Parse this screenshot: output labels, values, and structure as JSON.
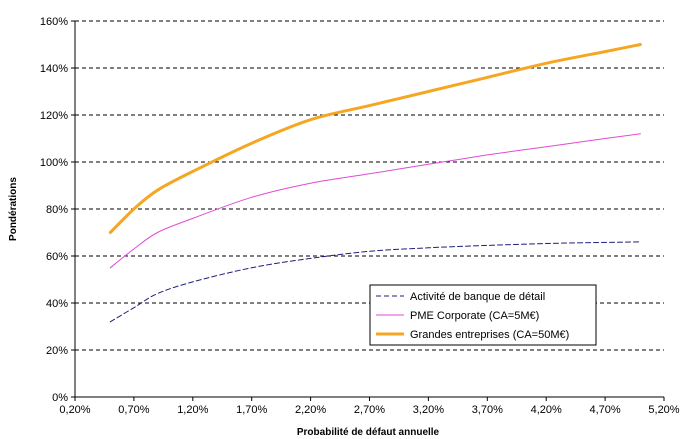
{
  "chart_data": {
    "type": "line",
    "xlabel": "Probabilité de défaut annuelle",
    "ylabel": "Pondérations",
    "xlim": [
      0.2,
      5.2
    ],
    "ylim": [
      0,
      160
    ],
    "x_ticks": [
      0.2,
      0.7,
      1.2,
      1.7,
      2.2,
      2.7,
      3.2,
      3.7,
      4.2,
      4.7,
      5.2
    ],
    "x_tick_labels": [
      "0,20%",
      "0,70%",
      "1,20%",
      "1,70%",
      "2,20%",
      "2,70%",
      "3,20%",
      "3,70%",
      "4,20%",
      "4,70%",
      "5,20%"
    ],
    "y_ticks": [
      0,
      20,
      40,
      60,
      80,
      100,
      120,
      140,
      160
    ],
    "y_tick_labels": [
      "0%",
      "20%",
      "40%",
      "60%",
      "80%",
      "100%",
      "120%",
      "140%",
      "160%"
    ],
    "grid": "horizontal dashed",
    "legend_position": "lower-right",
    "series": [
      {
        "name": "Activité de banque de détail",
        "color": "#1f1f7a",
        "style": "dashed",
        "x": [
          0.5,
          0.7,
          0.9,
          1.2,
          1.7,
          2.2,
          2.7,
          3.2,
          3.7,
          4.2,
          4.7,
          5.0
        ],
        "values": [
          32,
          38,
          44,
          49,
          55,
          59,
          62,
          63.5,
          64.5,
          65.3,
          65.8,
          66
        ]
      },
      {
        "name": "PME Corporate (CA=5M€)",
        "color": "#e04bd6",
        "style": "solid",
        "x": [
          0.5,
          0.7,
          0.9,
          1.2,
          1.7,
          2.2,
          2.7,
          3.2,
          3.7,
          4.2,
          4.7,
          5.0
        ],
        "values": [
          55,
          63,
          70,
          76,
          85,
          91,
          95,
          99,
          103,
          106.5,
          110,
          112
        ]
      },
      {
        "name": "Grandes entreprises (CA=50M€)",
        "color": "#f5a623",
        "style": "thick",
        "x": [
          0.5,
          0.7,
          0.9,
          1.2,
          1.7,
          2.2,
          2.7,
          3.2,
          3.7,
          4.2,
          4.7,
          5.0
        ],
        "values": [
          70,
          80,
          88,
          96,
          108,
          118,
          124,
          130,
          136,
          142,
          147,
          150
        ]
      }
    ]
  }
}
